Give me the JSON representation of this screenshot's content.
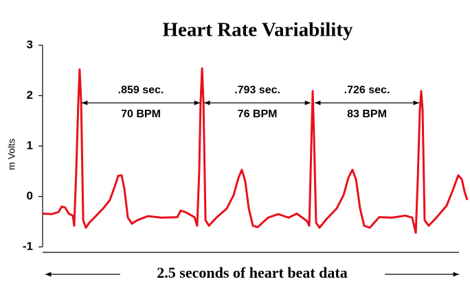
{
  "chart_data": {
    "type": "line",
    "title": "Heart Rate Variability",
    "ylabel": "m Volts",
    "xlabel": "2.5 seconds of heart beat data",
    "color": "#e8101a",
    "xlim": [
      0,
      2.5
    ],
    "ylim": [
      -1,
      3
    ],
    "yticks": [
      -1,
      0,
      1,
      2,
      3
    ],
    "grid": false,
    "x": [
      0,
      0.053,
      0.093,
      0.113,
      0.133,
      0.154,
      0.178,
      0.186,
      0.198,
      0.21,
      0.218,
      0.227,
      0.239,
      0.255,
      0.275,
      0.316,
      0.356,
      0.396,
      0.425,
      0.445,
      0.465,
      0.481,
      0.502,
      0.526,
      0.558,
      0.619,
      0.7,
      0.793,
      0.813,
      0.841,
      0.894,
      0.91,
      0.922,
      0.93,
      0.939,
      0.947,
      0.959,
      0.979,
      1.023,
      1.084,
      1.125,
      1.153,
      1.173,
      1.193,
      1.214,
      1.238,
      1.266,
      1.327,
      1.388,
      1.448,
      1.497,
      1.529,
      1.557,
      1.57,
      1.578,
      1.59,
      1.598,
      1.61,
      1.63,
      1.671,
      1.731,
      1.772,
      1.8,
      1.824,
      1.845,
      1.869,
      1.893,
      1.926,
      1.982,
      2.055,
      2.136,
      2.176,
      2.197,
      2.209,
      2.221,
      2.229,
      2.237,
      2.249,
      2.273,
      2.318,
      2.379,
      2.419,
      2.447,
      2.468,
      2.484,
      2.5
    ],
    "values": [
      -0.34,
      -0.35,
      -0.31,
      -0.2,
      -0.22,
      -0.34,
      -0.38,
      -0.58,
      0.5,
      1.86,
      2.52,
      1.86,
      -0.47,
      -0.62,
      -0.52,
      -0.38,
      -0.24,
      -0.07,
      0.2,
      0.41,
      0.42,
      0.16,
      -0.42,
      -0.54,
      -0.47,
      -0.39,
      -0.42,
      -0.41,
      -0.28,
      -0.31,
      -0.41,
      -0.58,
      0.5,
      1.86,
      2.54,
      1.86,
      -0.47,
      -0.58,
      -0.42,
      -0.24,
      0.03,
      0.37,
      0.53,
      0.3,
      -0.24,
      -0.58,
      -0.61,
      -0.42,
      -0.35,
      -0.42,
      -0.34,
      -0.42,
      -0.49,
      -0.58,
      0.5,
      2.09,
      1.18,
      -0.52,
      -0.62,
      -0.45,
      -0.24,
      0.03,
      0.37,
      0.53,
      0.34,
      -0.24,
      -0.58,
      -0.62,
      -0.41,
      -0.42,
      -0.38,
      -0.42,
      -0.72,
      0.37,
      1.72,
      2.09,
      1.72,
      -0.47,
      -0.58,
      -0.42,
      -0.18,
      0.16,
      0.42,
      0.34,
      0.1,
      -0.07
    ],
    "annotations": [
      {
        "label": ".859 sec.",
        "sublabel": "70 BPM"
      },
      {
        "label": ".793 sec.",
        "sublabel": "76 BPM"
      },
      {
        "label": ".726 sec.",
        "sublabel": "83 BPM"
      }
    ]
  }
}
